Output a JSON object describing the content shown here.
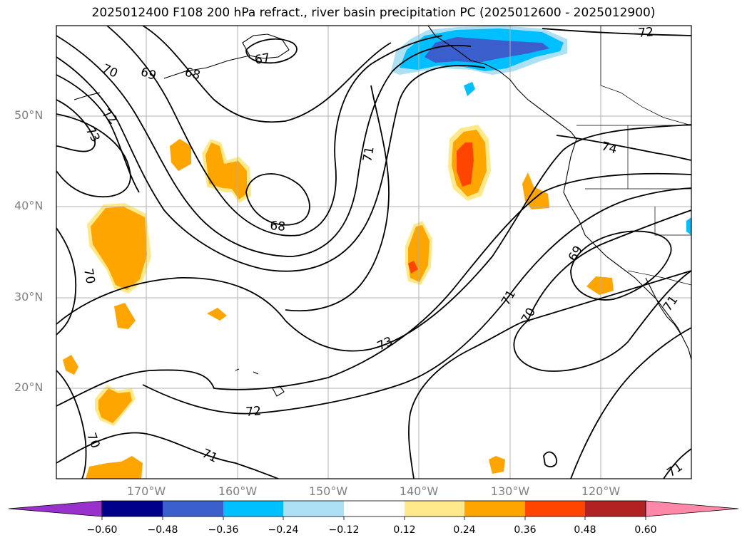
{
  "title": "2025012400 F108 200 hPa refract., river basin precipitation PC (2025012600 - 2025012900)",
  "lat_labels": [
    "50°N",
    "40°N",
    "30°N",
    "20°N"
  ],
  "lon_labels": [
    "170°W",
    "160°W",
    "150°W",
    "140°W",
    "130°W",
    "120°W"
  ],
  "contour_labels": [
    "70",
    "69",
    "68",
    "67",
    "72",
    "73",
    "72",
    "74",
    "71",
    "68",
    "69",
    "70",
    "71",
    "70",
    "73",
    "71",
    "72",
    "70",
    "71",
    "71"
  ],
  "colorbar": {
    "ticks": [
      "−0.60",
      "−0.48",
      "−0.36",
      "−0.24",
      "−0.12",
      "0.12",
      "0.24",
      "0.36",
      "0.48",
      "0.60"
    ],
    "colors": [
      "#9932CC",
      "#00008B",
      "#3A5FCD",
      "#00BFFF",
      "#ADE0F5",
      "#FFFFFF",
      "#FFE98A",
      "#FFA500",
      "#FF4500",
      "#B22222",
      "#FF88A8"
    ]
  },
  "colors": {
    "positive_low": "#FFE98A",
    "positive_mid": "#FFA500",
    "positive_high": "#FF4500",
    "negative_low": "#ADE0F5",
    "negative_mid": "#00BFFF",
    "negative_high": "#3A5FCD",
    "contour": "#000000",
    "grid": "#B0B0B0",
    "axis_label": "#808080"
  }
}
